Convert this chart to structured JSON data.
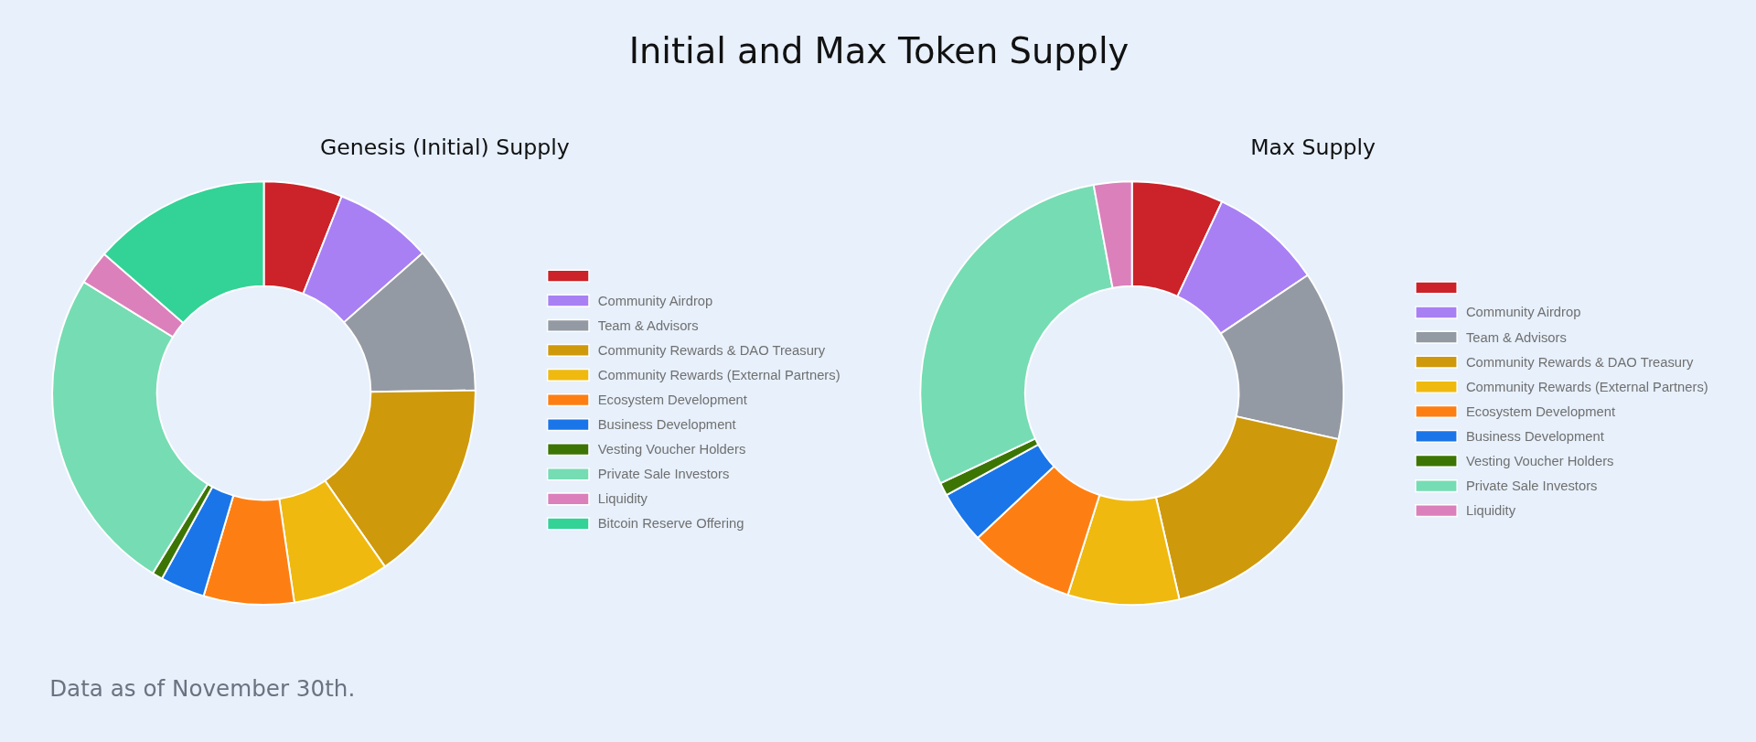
{
  "chart_data": [
    {
      "type": "donut",
      "title": "Initial and Max Token Supply",
      "subtitle": "Genesis (Initial) Supply",
      "categories": [
        null,
        "Community Airdrop",
        "Team & Advisors",
        "Community Rewards & DAO Treasury",
        "Community Rewards (External Partners)",
        "Ecosystem Development",
        "Business Development",
        "Vesting Voucher Holders",
        "Private Sale Investors",
        "Liquidity",
        "Bitcoin Reserve Offering"
      ],
      "values": [
        6.0,
        7.5,
        11.3,
        15.5,
        7.4,
        6.9,
        3.4,
        0.8,
        25.0,
        2.6,
        13.6
      ],
      "colors": [
        "#cc2229",
        "#a880f4",
        "#949aa3",
        "#cf990c",
        "#efb90f",
        "#fd7f13",
        "#1a75e8",
        "#3c7504",
        "#76dcb3",
        "#db80bb",
        "#33d296"
      ],
      "legend": "right",
      "annotations": [
        "Data as of November 30th."
      ]
    },
    {
      "type": "donut",
      "subtitle": "Max Supply",
      "categories": [
        null,
        "Community Airdrop",
        "Team & Advisors",
        "Community Rewards & DAO Treasury",
        "Community Rewards (External Partners)",
        "Ecosystem Development",
        "Business Development",
        "Vesting Voucher Holders",
        "Private Sale Investors",
        "Liquidity"
      ],
      "values": [
        7.0,
        8.6,
        12.9,
        17.9,
        8.5,
        8.1,
        4.0,
        1.0,
        29.1,
        2.9
      ],
      "colors": [
        "#cc2229",
        "#a880f4",
        "#949aa3",
        "#cf990c",
        "#efb90f",
        "#fd7f13",
        "#1a75e8",
        "#3c7504",
        "#76dcb3",
        "#db80bb"
      ],
      "legend": "right"
    }
  ]
}
